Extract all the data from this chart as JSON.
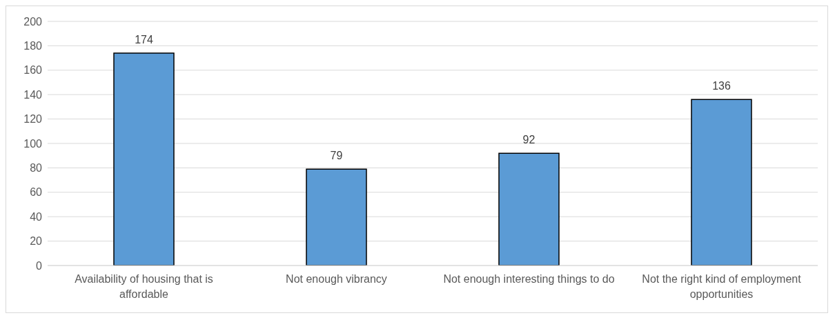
{
  "chart_data": {
    "type": "bar",
    "categories": [
      "Availability of housing that is affordable",
      "Not enough vibrancy",
      "Not enough interesting things to do",
      "Not the right kind of employment opportunities"
    ],
    "values": [
      174,
      79,
      92,
      136
    ],
    "color": "#5b9bd5",
    "ylim": [
      0,
      200
    ],
    "yticks": [
      0,
      20,
      40,
      60,
      80,
      100,
      120,
      140,
      160,
      180,
      200
    ],
    "grid": "y",
    "data_labels": true
  }
}
